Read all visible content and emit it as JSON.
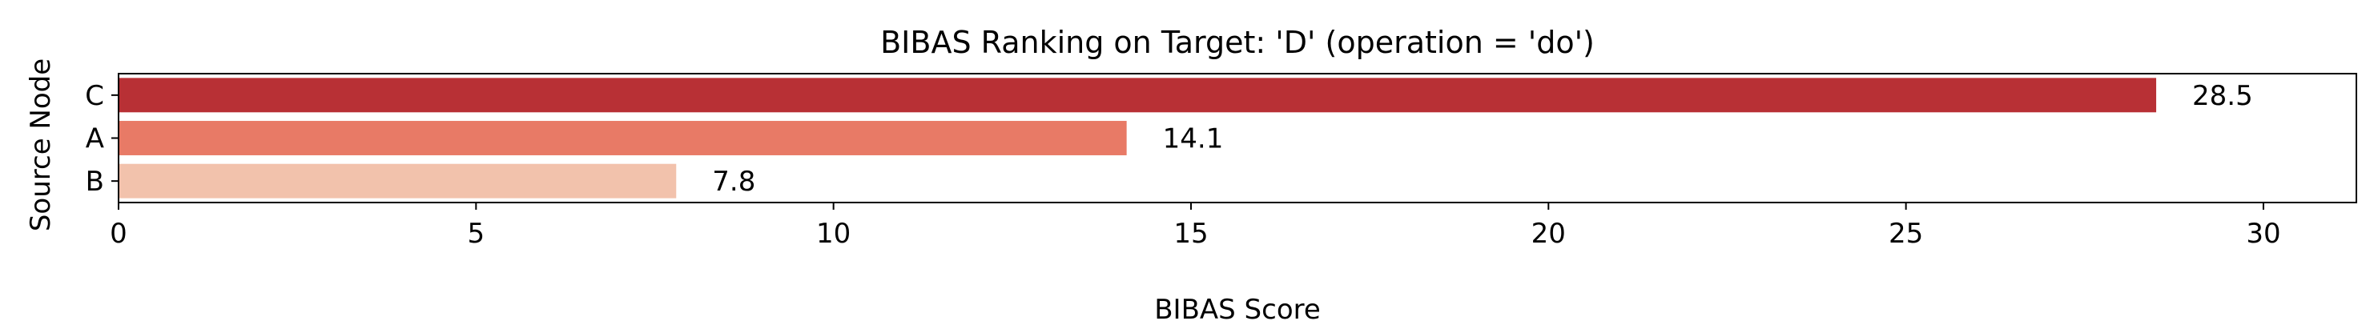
{
  "chart_data": {
    "type": "bar",
    "orientation": "horizontal",
    "title": "BIBAS Ranking on Target: 'D' (operation = 'do')",
    "xlabel": "BIBAS Score",
    "ylabel": "Source Node",
    "categories": [
      "C",
      "A",
      "B"
    ],
    "values": [
      28.5,
      14.1,
      7.8
    ],
    "value_labels": [
      "28.5",
      "14.1",
      "7.8"
    ],
    "bar_colors": [
      "#b83035",
      "#e87a66",
      "#f2c2ac"
    ],
    "xlim": [
      0,
      31.3
    ],
    "xticks": [
      0,
      5,
      10,
      15,
      20,
      25,
      30
    ],
    "xtick_labels": [
      "0",
      "5",
      "10",
      "15",
      "20",
      "25",
      "30"
    ],
    "grid": false,
    "legend": "none"
  }
}
